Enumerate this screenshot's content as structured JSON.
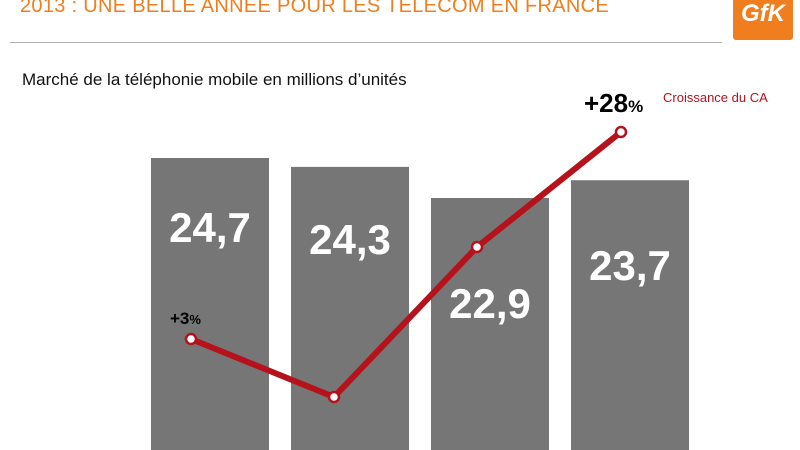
{
  "header": {
    "title": "2013 : UNE BELLE ANNEE POUR LES TELECOM EN FRANCE",
    "logo_text": "GfK"
  },
  "colors": {
    "accent": "#f07d1e",
    "bar": "#767676",
    "line": "#b5121b"
  },
  "chart_data": {
    "type": "bar",
    "title": "Marché de la téléphonie mobile en millions d’unités",
    "values": [
      24.7,
      24.3,
      22.9,
      23.7
    ],
    "value_labels": [
      "24,7",
      "24,3",
      "22,9",
      "23,7"
    ],
    "line_series": {
      "name": "Croissance du CA",
      "values": [
        3,
        null,
        null,
        28
      ],
      "annotations": [
        {
          "index": 0,
          "number": "+3",
          "unit": "%"
        },
        {
          "index": 3,
          "number": "+28",
          "unit": "%"
        }
      ]
    }
  }
}
